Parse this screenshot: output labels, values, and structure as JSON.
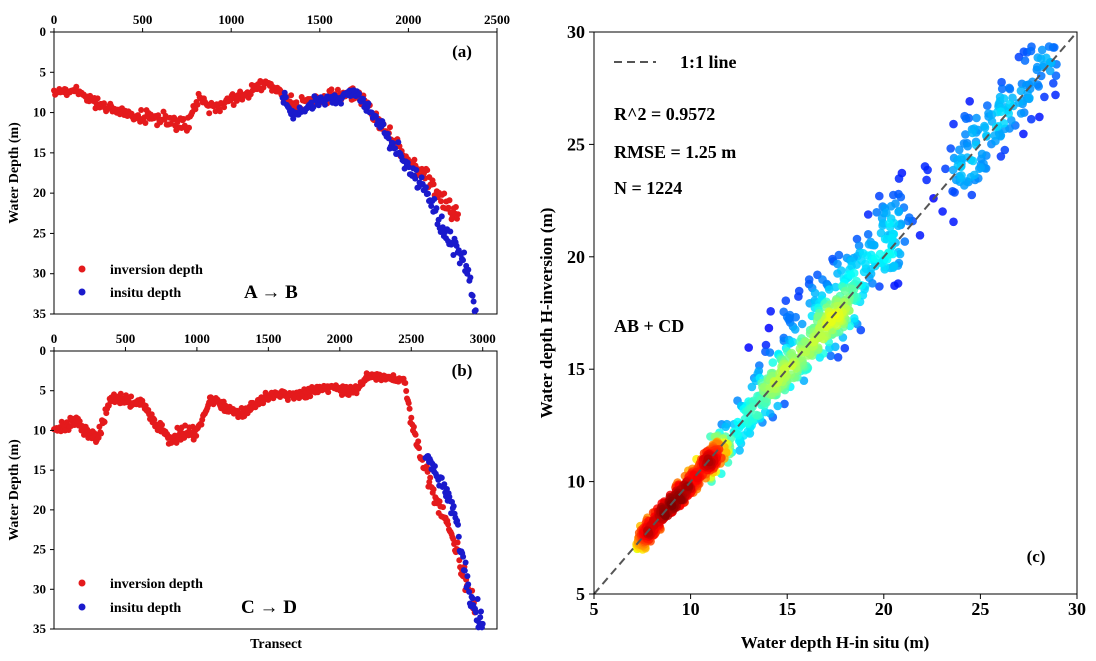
{
  "chart_data": [
    {
      "panel": "a",
      "type": "scatter",
      "tag": "(a)",
      "ylabel": "Water Depth (m)",
      "xlabel": "",
      "xlim": [
        0,
        2500
      ],
      "ylim": [
        0,
        35
      ],
      "y_inverted": true,
      "x_axis_position": "top",
      "xticks": [
        "0",
        "500",
        "1000",
        "1500",
        "2000",
        "2500"
      ],
      "yticks": [
        "0",
        "5",
        "10",
        "15",
        "20",
        "25",
        "30",
        "35"
      ],
      "direction_label": "A → B",
      "legend": [
        "inversion depth",
        "insitu depth"
      ],
      "series": [
        {
          "name": "inversion depth",
          "color": "#e41a1c",
          "profile": [
            [
              0,
              7.2
            ],
            [
              150,
              7.5
            ],
            [
              300,
              9.5
            ],
            [
              500,
              10.5
            ],
            [
              650,
              10.8
            ],
            [
              750,
              12
            ],
            [
              820,
              8
            ],
            [
              900,
              9.5
            ],
            [
              1000,
              8.5
            ],
            [
              1100,
              7.5
            ],
            [
              1200,
              6
            ],
            [
              1250,
              7
            ],
            [
              1350,
              9
            ],
            [
              1500,
              8.5
            ],
            [
              1700,
              7.5
            ],
            [
              1800,
              10
            ],
            [
              1900,
              13
            ],
            [
              2000,
              16
            ],
            [
              2100,
              18
            ],
            [
              2200,
              21
            ],
            [
              2280,
              23
            ]
          ]
        },
        {
          "name": "insitu depth",
          "color": "#1a1acc",
          "profile": [
            [
              1290,
              8
            ],
            [
              1350,
              10.5
            ],
            [
              1450,
              9
            ],
            [
              1550,
              8.5
            ],
            [
              1700,
              7.5
            ],
            [
              1800,
              10
            ],
            [
              1900,
              13.5
            ],
            [
              2000,
              17
            ],
            [
              2100,
              20
            ],
            [
              2200,
              24.5
            ],
            [
              2300,
              28
            ],
            [
              2380,
              33.5
            ]
          ]
        }
      ]
    },
    {
      "panel": "b",
      "type": "scatter",
      "tag": "(b)",
      "ylabel": "Water Depth (m)",
      "xlabel": "Transect",
      "xlim": [
        0,
        3100
      ],
      "ylim": [
        0,
        35
      ],
      "y_inverted": true,
      "x_axis_position": "top",
      "xticks": [
        "0",
        "500",
        "1000",
        "1500",
        "2000",
        "2500",
        "3000"
      ],
      "yticks": [
        "0",
        "5",
        "10",
        "15",
        "20",
        "25",
        "30",
        "35"
      ],
      "direction_label": "C → D",
      "legend": [
        "inversion depth",
        "insitu depth"
      ],
      "series": [
        {
          "name": "inversion depth",
          "color": "#e41a1c",
          "profile": [
            [
              0,
              10
            ],
            [
              150,
              9
            ],
            [
              300,
              11
            ],
            [
              400,
              6
            ],
            [
              600,
              6.5
            ],
            [
              800,
              11
            ],
            [
              1000,
              10
            ],
            [
              1100,
              6
            ],
            [
              1300,
              8
            ],
            [
              1500,
              5.5
            ],
            [
              1700,
              5.5
            ],
            [
              1900,
              4.5
            ],
            [
              2100,
              5
            ],
            [
              2200,
              3
            ],
            [
              2300,
              3.5
            ],
            [
              2450,
              3.5
            ],
            [
              2500,
              9
            ],
            [
              2600,
              15
            ],
            [
              2700,
              20
            ],
            [
              2800,
              24
            ],
            [
              2900,
              30
            ],
            [
              2950,
              33
            ]
          ]
        },
        {
          "name": "insitu depth",
          "color": "#1a1acc",
          "profile": [
            [
              2600,
              13.5
            ],
            [
              2700,
              16
            ],
            [
              2800,
              20
            ],
            [
              2850,
              25
            ],
            [
              2900,
              30
            ],
            [
              2950,
              33
            ],
            [
              3000,
              34.5
            ]
          ]
        }
      ]
    },
    {
      "panel": "c",
      "type": "scatter",
      "tag": "(c)",
      "xlabel": "Water depth H-in situ (m)",
      "ylabel": "Water depth H-inversion (m)",
      "xlim": [
        5,
        30
      ],
      "ylim": [
        5,
        30
      ],
      "xticks": [
        "5",
        "10",
        "15",
        "20",
        "25",
        "30"
      ],
      "yticks": [
        "5",
        "10",
        "15",
        "20",
        "25",
        "30"
      ],
      "colormap": "density (jet)",
      "reference_line": "1:1 line",
      "stats": {
        "r2": "R^2 = 0.9572",
        "rmse": "RMSE = 1.25 m",
        "n": "N = 1224"
      },
      "group_label": "AB + CD"
    }
  ]
}
